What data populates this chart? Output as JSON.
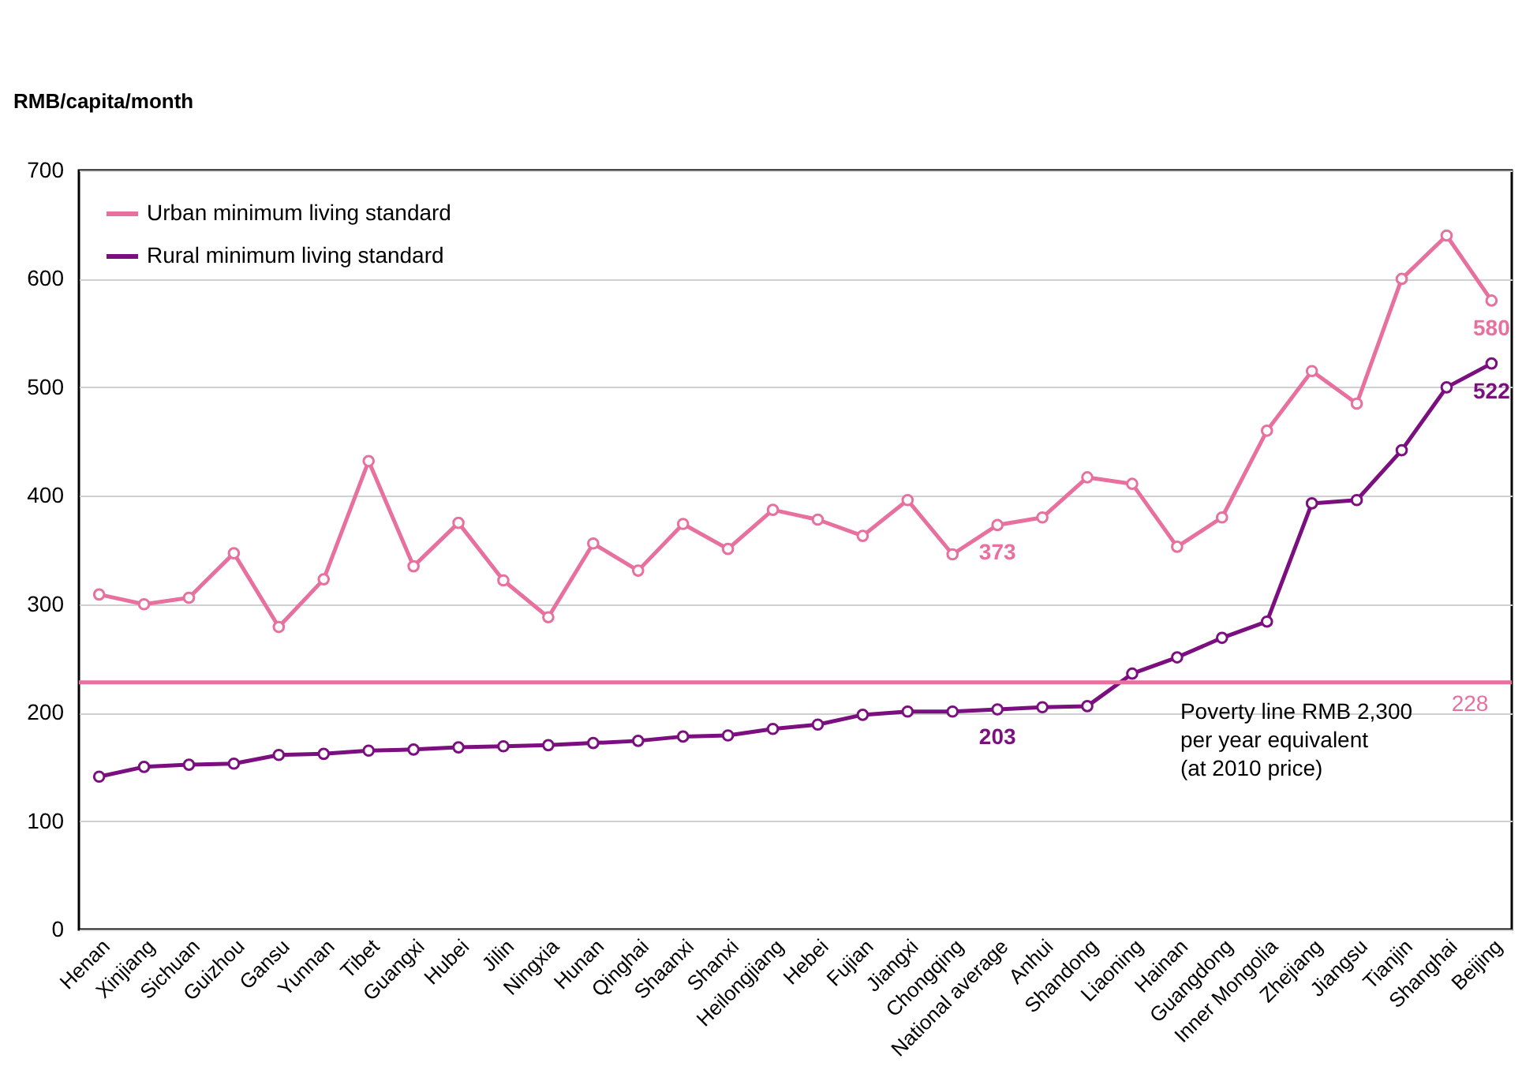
{
  "chart_data": {
    "type": "line",
    "ylabel": "RMB/capita/month",
    "categories": [
      "Henan",
      "Xinjiang",
      "Sichuan",
      "Guizhou",
      "Gansu",
      "Yunnan",
      "Tibet",
      "Guangxi",
      "Hubei",
      "Jilin",
      "Ningxia",
      "Hunan",
      "Qinghai",
      "Shaanxi",
      "Shanxi",
      "Heilongjiang",
      "Hebei",
      "Fujian",
      "Jiangxi",
      "Chongqing",
      "National average",
      "Anhui",
      "Shandong",
      "Liaoning",
      "Hainan",
      "Guangdong",
      "Inner Mongolia",
      "Zhejiang",
      "Jiangsu",
      "Tianjin",
      "Shanghai",
      "Beijing"
    ],
    "series": [
      {
        "name": "Urban minimum living standard",
        "color": "#e8709e",
        "values": [
          309,
          300,
          306,
          347,
          279,
          323,
          432,
          335,
          375,
          322,
          288,
          356,
          331,
          374,
          351,
          387,
          378,
          363,
          396,
          346,
          373,
          380,
          417,
          411,
          353,
          380,
          460,
          515,
          485,
          600,
          640,
          580
        ],
        "value_labels": [
          null,
          null,
          null,
          null,
          null,
          null,
          null,
          null,
          null,
          null,
          null,
          null,
          null,
          null,
          null,
          null,
          null,
          null,
          null,
          null,
          "373",
          null,
          null,
          null,
          null,
          null,
          null,
          null,
          null,
          null,
          null,
          "580"
        ]
      },
      {
        "name": "Rural minimum living standard",
        "color": "#7b0f7f",
        "values": [
          141,
          150,
          152,
          153,
          161,
          162,
          165,
          166,
          168,
          169,
          170,
          172,
          174,
          178,
          179,
          185,
          189,
          198,
          201,
          201,
          203,
          205,
          206,
          236,
          251,
          269,
          284,
          393,
          396,
          442,
          500,
          522
        ],
        "value_labels": [
          null,
          null,
          null,
          null,
          null,
          null,
          null,
          null,
          null,
          null,
          null,
          null,
          null,
          null,
          null,
          null,
          null,
          null,
          null,
          null,
          "203",
          null,
          null,
          null,
          null,
          null,
          null,
          null,
          null,
          null,
          null,
          "522"
        ]
      }
    ],
    "ylim": [
      0,
      700
    ],
    "yticks": [
      0,
      100,
      200,
      300,
      400,
      500,
      600,
      700
    ],
    "ref_lines": [
      {
        "axis": "y",
        "value": 228,
        "label": "228",
        "color": "#e8709e",
        "line_style": "solid"
      }
    ],
    "annotations": [
      {
        "text": "Poverty line RMB 2,300\nper year equivalent\n(at 2010 price)",
        "x": "Hainan",
        "y": 228
      }
    ],
    "grid": "y",
    "legend": "top left",
    "marker": "circle",
    "line_style": "solid"
  }
}
